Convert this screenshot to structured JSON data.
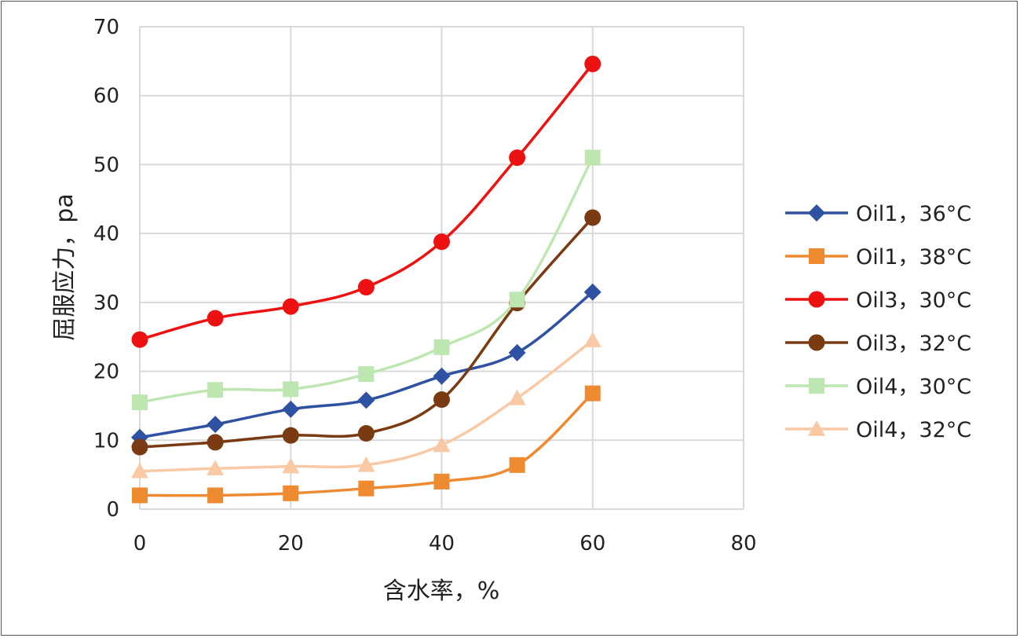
{
  "chart_data": {
    "type": "line",
    "title": "",
    "xlabel": "含水率，%",
    "ylabel": "屈服应力，pa",
    "xlim": [
      0,
      80
    ],
    "ylim": [
      0,
      70
    ],
    "xticks": [
      "0",
      "20",
      "40",
      "60",
      "80"
    ],
    "yticks": [
      "0",
      "10",
      "20",
      "30",
      "40",
      "50",
      "60",
      "70"
    ],
    "x": [
      0,
      10,
      20,
      30,
      40,
      50,
      60
    ],
    "grid": true,
    "legend_position": "right",
    "series": [
      {
        "name": "Oil1，36°C",
        "color": "#2E51A2",
        "marker": "diamond",
        "values": [
          10.4,
          12.3,
          14.5,
          15.8,
          19.3,
          22.7,
          31.5
        ]
      },
      {
        "name": "Oil1，38°C",
        "color": "#EE8A30",
        "marker": "square",
        "values": [
          2.0,
          2.0,
          2.3,
          3.0,
          4.0,
          6.4,
          16.8
        ]
      },
      {
        "name": "Oil3，30°C",
        "color": "#EE1111",
        "marker": "circle",
        "values": [
          24.6,
          27.7,
          29.4,
          32.2,
          38.8,
          51.0,
          64.6
        ]
      },
      {
        "name": "Oil3，32°C",
        "color": "#7A3A12",
        "marker": "circle",
        "values": [
          9.0,
          9.7,
          10.7,
          11.0,
          15.9,
          29.9,
          42.3
        ]
      },
      {
        "name": "Oil4，30°C",
        "color": "#BDE6B1",
        "marker": "square",
        "values": [
          15.5,
          17.3,
          17.4,
          19.6,
          23.5,
          30.4,
          51.0
        ]
      },
      {
        "name": "Oil4，32°C",
        "color": "#F9C9A6",
        "marker": "triangle",
        "values": [
          5.5,
          5.9,
          6.2,
          6.4,
          9.3,
          16.1,
          24.5
        ]
      }
    ]
  }
}
